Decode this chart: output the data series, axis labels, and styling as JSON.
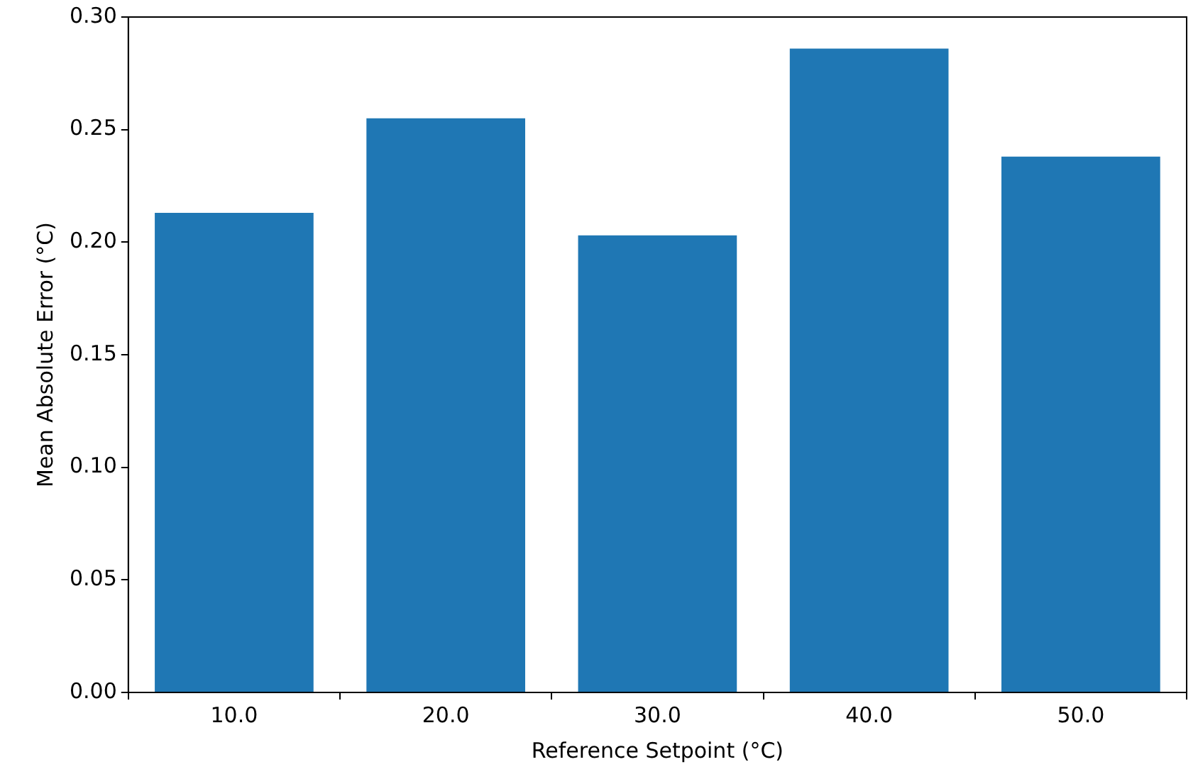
{
  "chart_data": {
    "type": "bar",
    "xlabel": "Reference Setpoint (°C)",
    "ylabel": "Mean Absolute Error (°C)",
    "categories": [
      "10.0",
      "20.0",
      "30.0",
      "40.0",
      "50.0"
    ],
    "values": [
      0.213,
      0.255,
      0.203,
      0.286,
      0.238
    ],
    "color": "#1f77b4",
    "ylim": [
      0,
      0.3
    ],
    "yticks": [
      {
        "value": 0,
        "label": "0.00"
      },
      {
        "value": 0.05,
        "label": "0.05"
      },
      {
        "value": 0.1,
        "label": "0.10"
      },
      {
        "value": 0.15,
        "label": "0.15"
      },
      {
        "value": 0.2,
        "label": "0.20"
      },
      {
        "value": 0.25,
        "label": "0.25"
      },
      {
        "value": 0.3,
        "label": "0.30"
      }
    ],
    "grid": false,
    "legend": false
  }
}
